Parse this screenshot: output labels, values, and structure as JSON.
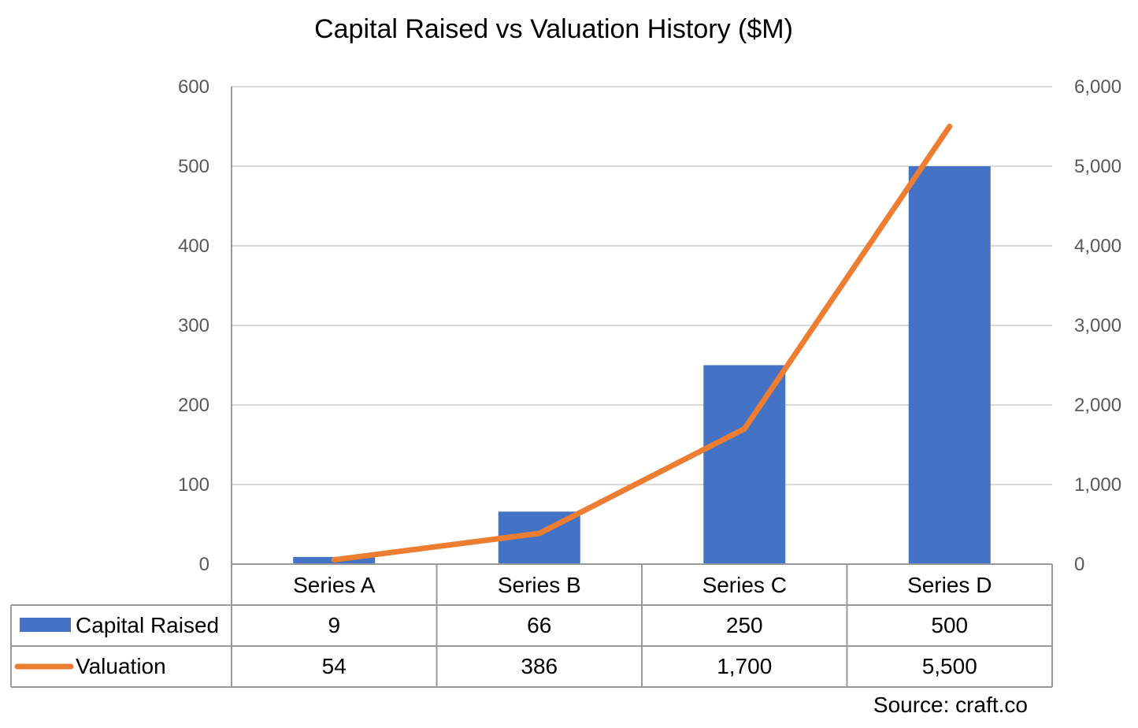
{
  "chart_data": {
    "type": "bar",
    "title": "Capital Raised vs Valuation History ($M)",
    "categories": [
      "Series A",
      "Series B",
      "Series C",
      "Series D"
    ],
    "series": [
      {
        "name": "Capital Raised",
        "type": "bar",
        "axis": "left",
        "color": "#4472C4",
        "values": [
          9,
          66,
          250,
          500
        ],
        "labels": [
          "9",
          "66",
          "250",
          "500"
        ]
      },
      {
        "name": "Valuation",
        "type": "line",
        "axis": "right",
        "color": "#ED7D31",
        "values": [
          54,
          386,
          1700,
          5500
        ],
        "labels": [
          "54",
          "386",
          "1,700",
          "5,500"
        ]
      }
    ],
    "left_axis": {
      "ylim": [
        0,
        600
      ],
      "ticks": [
        0,
        100,
        200,
        300,
        400,
        500,
        600
      ],
      "tick_labels": [
        "0",
        "100",
        "200",
        "300",
        "400",
        "500",
        "600"
      ]
    },
    "right_axis": {
      "ylim": [
        0,
        6000
      ],
      "ticks": [
        0,
        1000,
        2000,
        3000,
        4000,
        5000,
        6000
      ],
      "tick_labels": [
        "0",
        "1,000",
        "2,000",
        "3,000",
        "4,000",
        "5,000",
        "6,000"
      ]
    },
    "grid": true,
    "legend": "data-table",
    "source": "Source: craft.co"
  }
}
